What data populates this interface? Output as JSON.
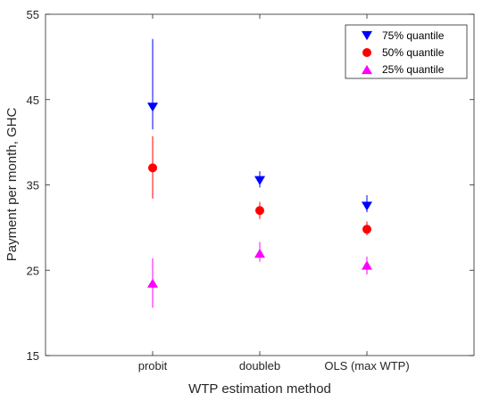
{
  "chart_data": {
    "type": "scatter",
    "xlabel": "WTP estimation method",
    "ylabel": "Payment per month, GHC",
    "categories": [
      "probit",
      "doubleb",
      "OLS (max WTP)"
    ],
    "xlim": [
      0,
      4
    ],
    "ylim": [
      15,
      55
    ],
    "yticks": [
      "15",
      "25",
      "35",
      "45",
      "55"
    ],
    "grid": false,
    "legend_position": "top-right",
    "series": [
      {
        "name": "75% quantile",
        "marker": "triangle-down",
        "color": "#0000ff",
        "values": [
          44.1,
          35.5,
          32.5
        ],
        "err_low": [
          41.5,
          34.7,
          31.8
        ],
        "err_high": [
          52.1,
          36.6,
          33.8
        ]
      },
      {
        "name": "50% quantile",
        "marker": "circle",
        "color": "#ff0000",
        "values": [
          37.0,
          32.0,
          29.8
        ],
        "err_low": [
          33.4,
          31.0,
          29.1
        ],
        "err_high": [
          40.7,
          33.0,
          30.7
        ]
      },
      {
        "name": "25% quantile",
        "marker": "triangle-up",
        "color": "#ff00ff",
        "values": [
          23.5,
          27.0,
          25.6
        ],
        "err_low": [
          20.6,
          26.0,
          24.5
        ],
        "err_high": [
          26.4,
          28.3,
          26.6
        ]
      }
    ]
  }
}
